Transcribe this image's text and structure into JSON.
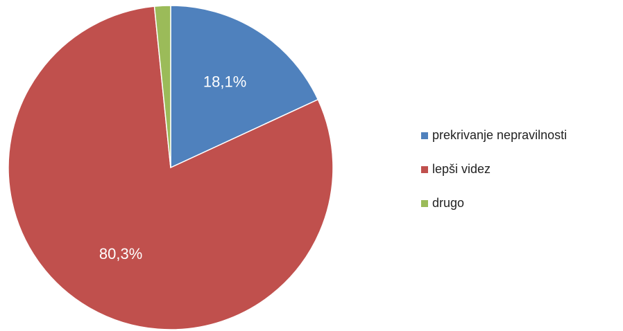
{
  "chart_data": {
    "type": "pie",
    "categories": [
      "prekrivanje nepravilnosti",
      "lepši videz",
      "drugo"
    ],
    "values": [
      18.1,
      80.3,
      1.6
    ],
    "value_labels": [
      "18,1%",
      "80,3%",
      null
    ],
    "colors": [
      "#4f81bd",
      "#c0504d",
      "#9bbb59"
    ],
    "legend": "right"
  }
}
